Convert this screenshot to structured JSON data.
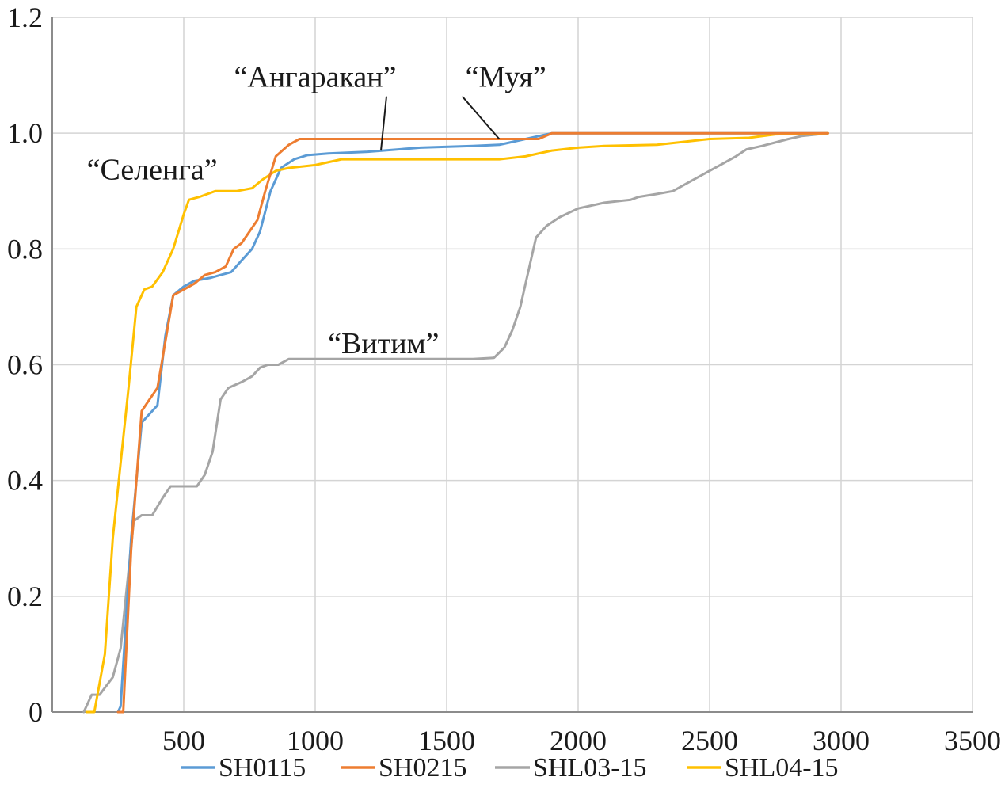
{
  "chart_data": {
    "type": "line",
    "title": "",
    "xlabel": "",
    "ylabel": "",
    "xlim": [
      0,
      3500
    ],
    "ylim": [
      0,
      1.2
    ],
    "x_ticks": [
      500,
      1000,
      1500,
      2000,
      2500,
      3000,
      3500
    ],
    "y_ticks": [
      0,
      0.2,
      0.4,
      0.6,
      0.8,
      1.0,
      1.2
    ],
    "x_tick_labels": [
      "500",
      "1000",
      "1500",
      "2000",
      "2500",
      "3000",
      "3500"
    ],
    "y_tick_labels": [
      "0",
      "0.2",
      "0.4",
      "0.6",
      "0.8",
      "1.0",
      "1.2"
    ],
    "grid": true,
    "legend_position": "bottom",
    "series": [
      {
        "name": "SH0115",
        "color": "#5b9bd5",
        "points": [
          [
            250,
            0
          ],
          [
            260,
            0.01
          ],
          [
            300,
            0.3
          ],
          [
            340,
            0.5
          ],
          [
            360,
            0.51
          ],
          [
            380,
            0.52
          ],
          [
            400,
            0.53
          ],
          [
            430,
            0.65
          ],
          [
            460,
            0.72
          ],
          [
            500,
            0.735
          ],
          [
            540,
            0.745
          ],
          [
            600,
            0.75
          ],
          [
            640,
            0.755
          ],
          [
            680,
            0.76
          ],
          [
            720,
            0.78
          ],
          [
            760,
            0.8
          ],
          [
            790,
            0.83
          ],
          [
            830,
            0.9
          ],
          [
            870,
            0.94
          ],
          [
            920,
            0.955
          ],
          [
            970,
            0.962
          ],
          [
            1050,
            0.965
          ],
          [
            1200,
            0.968
          ],
          [
            1400,
            0.975
          ],
          [
            1600,
            0.978
          ],
          [
            1700,
            0.98
          ],
          [
            1800,
            0.99
          ],
          [
            1900,
            1.0
          ],
          [
            2000,
            1.0
          ],
          [
            2950,
            1.0
          ]
        ]
      },
      {
        "name": "SH0215",
        "color": "#ed7d31",
        "points": [
          [
            250,
            0
          ],
          [
            270,
            0
          ],
          [
            300,
            0.28
          ],
          [
            340,
            0.52
          ],
          [
            370,
            0.54
          ],
          [
            400,
            0.56
          ],
          [
            430,
            0.64
          ],
          [
            460,
            0.72
          ],
          [
            500,
            0.73
          ],
          [
            540,
            0.74
          ],
          [
            580,
            0.755
          ],
          [
            620,
            0.76
          ],
          [
            660,
            0.77
          ],
          [
            690,
            0.8
          ],
          [
            720,
            0.81
          ],
          [
            750,
            0.83
          ],
          [
            780,
            0.85
          ],
          [
            810,
            0.9
          ],
          [
            850,
            0.96
          ],
          [
            900,
            0.98
          ],
          [
            940,
            0.99
          ],
          [
            1000,
            0.99
          ],
          [
            1500,
            0.99
          ],
          [
            1700,
            0.99
          ],
          [
            1850,
            0.99
          ],
          [
            1900,
            1.0
          ],
          [
            2950,
            1.0
          ]
        ]
      },
      {
        "name": "SHL03-15",
        "color": "#a5a5a5",
        "points": [
          [
            120,
            0
          ],
          [
            150,
            0.03
          ],
          [
            180,
            0.03
          ],
          [
            230,
            0.06
          ],
          [
            260,
            0.11
          ],
          [
            280,
            0.2
          ],
          [
            310,
            0.33
          ],
          [
            340,
            0.34
          ],
          [
            380,
            0.34
          ],
          [
            420,
            0.37
          ],
          [
            450,
            0.39
          ],
          [
            500,
            0.39
          ],
          [
            550,
            0.39
          ],
          [
            580,
            0.41
          ],
          [
            610,
            0.45
          ],
          [
            640,
            0.54
          ],
          [
            670,
            0.56
          ],
          [
            720,
            0.57
          ],
          [
            760,
            0.58
          ],
          [
            790,
            0.595
          ],
          [
            820,
            0.6
          ],
          [
            860,
            0.6
          ],
          [
            900,
            0.61
          ],
          [
            1000,
            0.61
          ],
          [
            1200,
            0.61
          ],
          [
            1400,
            0.61
          ],
          [
            1600,
            0.61
          ],
          [
            1680,
            0.612
          ],
          [
            1720,
            0.63
          ],
          [
            1750,
            0.66
          ],
          [
            1780,
            0.7
          ],
          [
            1800,
            0.74
          ],
          [
            1840,
            0.82
          ],
          [
            1880,
            0.84
          ],
          [
            1930,
            0.855
          ],
          [
            2000,
            0.87
          ],
          [
            2100,
            0.88
          ],
          [
            2200,
            0.885
          ],
          [
            2230,
            0.89
          ],
          [
            2300,
            0.895
          ],
          [
            2360,
            0.9
          ],
          [
            2420,
            0.915
          ],
          [
            2480,
            0.93
          ],
          [
            2540,
            0.945
          ],
          [
            2600,
            0.96
          ],
          [
            2640,
            0.972
          ],
          [
            2700,
            0.978
          ],
          [
            2800,
            0.99
          ],
          [
            2850,
            0.995
          ],
          [
            2950,
            1.0
          ]
        ]
      },
      {
        "name": "SHL04-15",
        "color": "#ffc000",
        "points": [
          [
            130,
            0
          ],
          [
            160,
            0
          ],
          [
            200,
            0.1
          ],
          [
            230,
            0.3
          ],
          [
            260,
            0.43
          ],
          [
            290,
            0.56
          ],
          [
            320,
            0.7
          ],
          [
            350,
            0.73
          ],
          [
            380,
            0.735
          ],
          [
            420,
            0.76
          ],
          [
            460,
            0.8
          ],
          [
            500,
            0.86
          ],
          [
            520,
            0.885
          ],
          [
            560,
            0.89
          ],
          [
            620,
            0.9
          ],
          [
            700,
            0.9
          ],
          [
            760,
            0.905
          ],
          [
            800,
            0.92
          ],
          [
            850,
            0.935
          ],
          [
            900,
            0.94
          ],
          [
            1000,
            0.945
          ],
          [
            1100,
            0.955
          ],
          [
            1300,
            0.955
          ],
          [
            1500,
            0.955
          ],
          [
            1700,
            0.955
          ],
          [
            1800,
            0.96
          ],
          [
            1900,
            0.97
          ],
          [
            2000,
            0.975
          ],
          [
            2100,
            0.978
          ],
          [
            2300,
            0.98
          ],
          [
            2400,
            0.985
          ],
          [
            2500,
            0.99
          ],
          [
            2650,
            0.992
          ],
          [
            2750,
            0.998
          ],
          [
            2950,
            1.0
          ]
        ]
      }
    ],
    "annotations": [
      {
        "text": "“Ангаракан”",
        "x": 1000,
        "y": 1.08,
        "arrow_to": [
          1250,
          0.97
        ]
      },
      {
        "text": "“Муя”",
        "x": 1725,
        "y": 1.08,
        "arrow_to": [
          1700,
          0.99
        ]
      },
      {
        "text": "“Селенга”",
        "x": 380,
        "y": 0.92
      },
      {
        "text": "“Витим”",
        "x": 1260,
        "y": 0.62
      }
    ]
  }
}
